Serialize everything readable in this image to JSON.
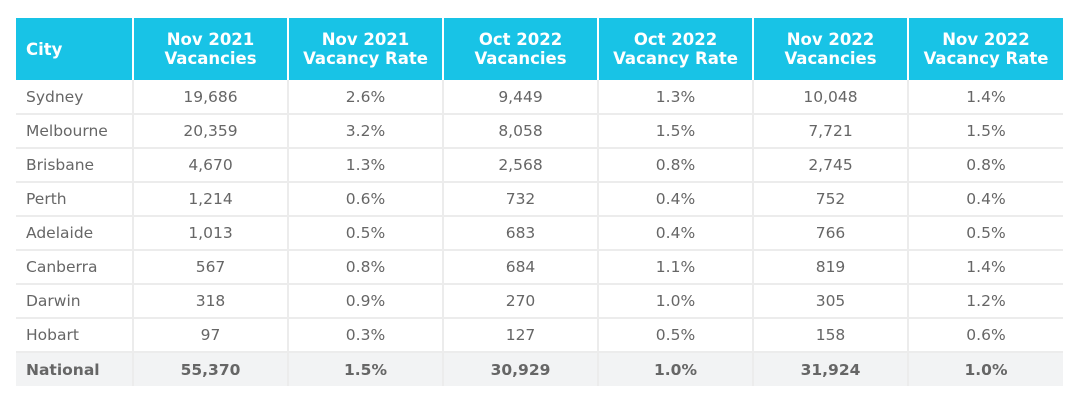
{
  "table": {
    "headers": [
      [
        "City"
      ],
      [
        "Nov 2021",
        "Vacancies"
      ],
      [
        "Nov 2021",
        "Vacancy Rate"
      ],
      [
        "Oct 2022",
        "Vacancies"
      ],
      [
        "Oct 2022",
        "Vacancy Rate"
      ],
      [
        "Nov 2022",
        "Vacancies"
      ],
      [
        "Nov 2022",
        "Vacancy Rate"
      ]
    ],
    "rows": [
      [
        "Sydney",
        "19,686",
        "2.6%",
        "9,449",
        "1.3%",
        "10,048",
        "1.4%"
      ],
      [
        "Melbourne",
        "20,359",
        "3.2%",
        "8,058",
        "1.5%",
        "7,721",
        "1.5%"
      ],
      [
        "Brisbane",
        "4,670",
        "1.3%",
        "2,568",
        "0.8%",
        "2,745",
        "0.8%"
      ],
      [
        "Perth",
        "1,214",
        "0.6%",
        "732",
        "0.4%",
        "752",
        "0.4%"
      ],
      [
        "Adelaide",
        "1,013",
        "0.5%",
        "683",
        "0.4%",
        "766",
        "0.5%"
      ],
      [
        "Canberra",
        "567",
        "0.8%",
        "684",
        "1.1%",
        "819",
        "1.4%"
      ],
      [
        "Darwin",
        "318",
        "0.9%",
        "270",
        "1.0%",
        "305",
        "1.2%"
      ],
      [
        "Hobart",
        "97",
        "0.3%",
        "127",
        "0.5%",
        "158",
        "0.6%"
      ]
    ],
    "total": [
      "National",
      "55,370",
      "1.5%",
      "30,929",
      "1.0%",
      "31,924",
      "1.0%"
    ]
  },
  "colors": {
    "header_bg": "#18c3e6",
    "header_text": "#ffffff",
    "body_text": "#666666",
    "grid": "#ececec",
    "total_bg": "#f2f3f4"
  }
}
